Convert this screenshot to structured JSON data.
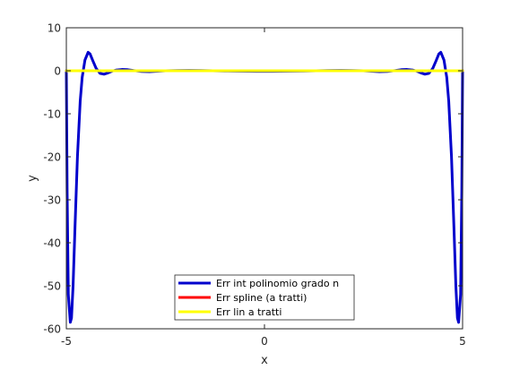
{
  "chart_data": {
    "type": "line",
    "title": "",
    "xlabel": "x",
    "ylabel": "y",
    "xlim": [
      -5,
      5
    ],
    "ylim": [
      -60,
      10
    ],
    "xticks": [
      -5,
      0,
      5
    ],
    "yticks": [
      -60,
      -50,
      -40,
      -30,
      -20,
      -10,
      0,
      10
    ],
    "grid": false,
    "legend_position": "bottom-center",
    "series": [
      {
        "name": "Err int polinomio grado n",
        "color": "#0000cc",
        "x": [
          -5.0,
          -4.98,
          -4.95,
          -4.9,
          -4.87,
          -4.83,
          -4.78,
          -4.72,
          -4.65,
          -4.6,
          -4.53,
          -4.45,
          -4.4,
          -4.33,
          -4.25,
          -4.15,
          -4.05,
          -3.95,
          -3.85,
          -3.75,
          -3.6,
          -3.45,
          -3.3,
          -3.1,
          -2.9,
          -2.7,
          -2.5,
          -2.2,
          -1.9,
          -1.6,
          -1.3,
          -1.0,
          -0.7,
          -0.4,
          -0.2,
          0.0,
          0.2,
          0.4,
          0.7,
          1.0,
          1.3,
          1.6,
          1.9,
          2.2,
          2.5,
          2.7,
          2.9,
          3.1,
          3.3,
          3.45,
          3.6,
          3.75,
          3.85,
          3.95,
          4.05,
          4.15,
          4.25,
          4.33,
          4.4,
          4.45,
          4.53,
          4.6,
          4.65,
          4.72,
          4.78,
          4.83,
          4.87,
          4.9,
          4.95,
          4.98,
          5.0
        ],
        "y": [
          0.0,
          -28.0,
          -52.0,
          -58.5,
          -57.5,
          -50.0,
          -36.0,
          -20.0,
          -7.0,
          -1.5,
          2.5,
          4.3,
          3.9,
          2.3,
          0.6,
          -0.6,
          -0.8,
          -0.5,
          -0.1,
          0.15,
          0.3,
          0.25,
          0.05,
          -0.15,
          -0.2,
          -0.1,
          0.0,
          0.05,
          0.08,
          0.05,
          0.0,
          -0.05,
          -0.08,
          -0.1,
          -0.12,
          -0.12,
          -0.12,
          -0.1,
          -0.08,
          -0.05,
          0.0,
          0.05,
          0.08,
          0.05,
          0.0,
          -0.1,
          -0.2,
          -0.15,
          0.05,
          0.25,
          0.3,
          0.15,
          -0.1,
          -0.5,
          -0.8,
          -0.6,
          0.6,
          2.3,
          3.9,
          4.3,
          2.5,
          -1.5,
          -7.0,
          -20.0,
          -36.0,
          -50.0,
          -57.5,
          -58.5,
          -52.0,
          -28.0,
          0.0
        ]
      },
      {
        "name": "Err spline (a tratti)",
        "color": "#ff0000",
        "x": [
          -5.0,
          5.0
        ],
        "y": [
          0.0,
          0.0
        ]
      },
      {
        "name": "Err lin a tratti",
        "color": "#ffff00",
        "x": [
          -5.0,
          5.0
        ],
        "y": [
          0.0,
          0.0
        ]
      }
    ]
  }
}
